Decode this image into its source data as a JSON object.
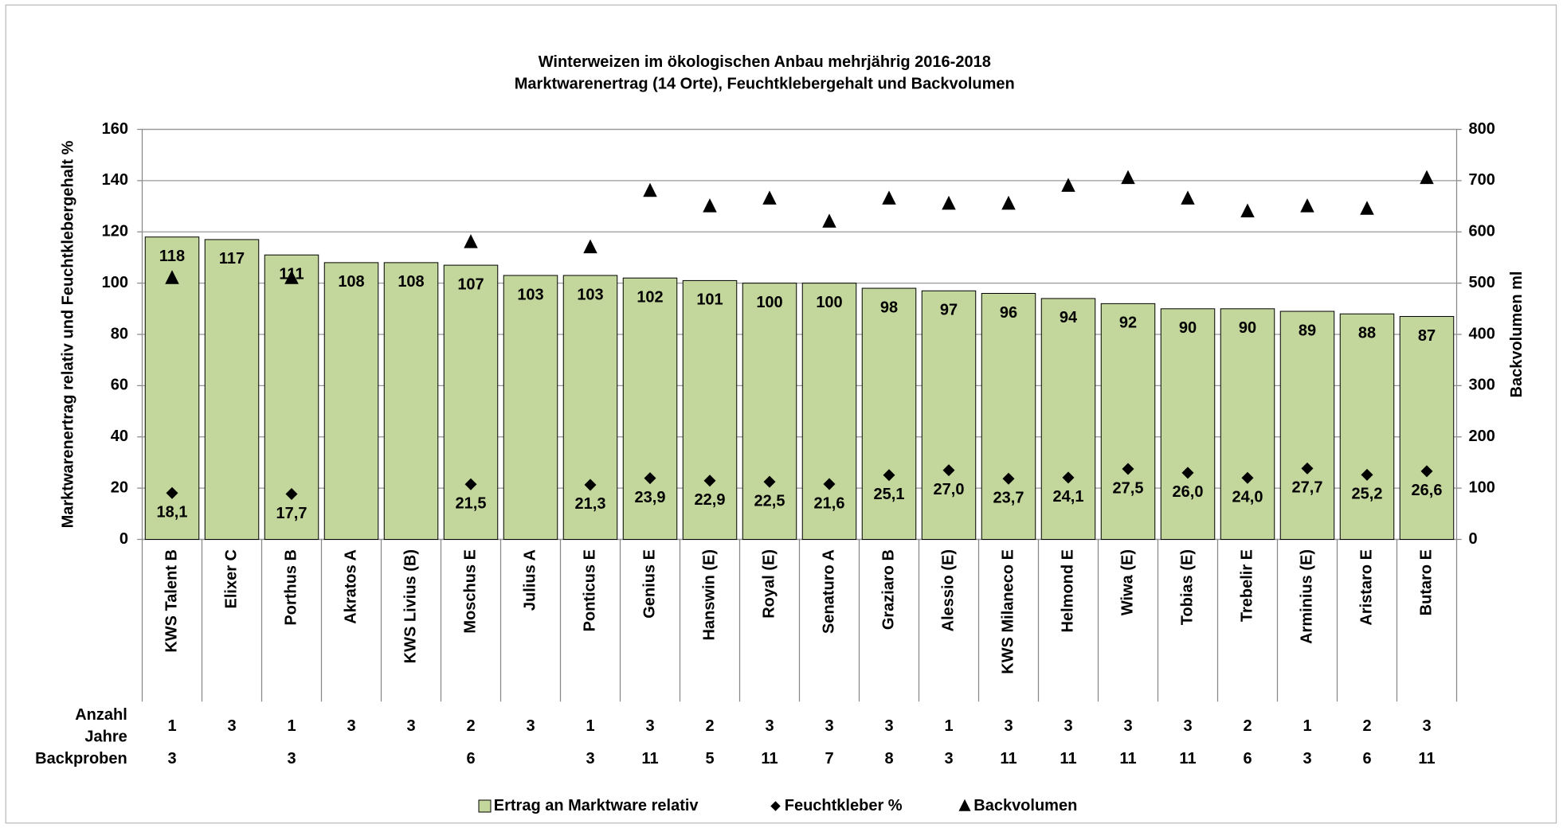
{
  "chart_data": {
    "type": "bar",
    "title": "Winterweizen im ökologischen Anbau mehrjährig 2016-2018",
    "subtitle": "Marktwarenertrag (14 Orte), Feuchtklebergehalt und Backvolumen",
    "y_label": "Marktwarenertrag relativ und Feuchtklebergehalt %",
    "y2_label": "Backvolumen ml",
    "categories": [
      "KWS Talent B",
      "Elixer C",
      "Porthus B",
      "Akratos A",
      "KWS Livius (B)",
      "Moschus E",
      "Julius A",
      "Ponticus E",
      "Genius E",
      "Hanswin (E)",
      "Royal (E)",
      "Senaturo A",
      "Graziaro B",
      "Alessio (E)",
      "KWS Milaneco E",
      "Helmond E",
      "Wiwa (E)",
      "Tobias (E)",
      "Trebelir E",
      "Arminius (E)",
      "Aristaro E",
      "Butaro E"
    ],
    "series": [
      {
        "name": "Ertrag an Marktware relativ",
        "type": "bar",
        "color": "#c3d69b",
        "values": [
          118,
          117,
          111,
          108,
          108,
          107,
          103,
          103,
          102,
          101,
          100,
          100,
          98,
          97,
          96,
          94,
          92,
          90,
          90,
          89,
          88,
          87
        ]
      },
      {
        "name": "Feuchtkleber %",
        "type": "diamond",
        "color": "#000000",
        "values": [
          18.1,
          null,
          17.7,
          null,
          null,
          21.5,
          null,
          21.3,
          23.9,
          22.9,
          22.5,
          21.6,
          25.1,
          27.0,
          23.7,
          24.1,
          27.5,
          26.0,
          24.0,
          27.7,
          25.2,
          26.6
        ],
        "value_labels": [
          "18,1",
          null,
          "17,7",
          null,
          null,
          "21,5",
          null,
          "21,3",
          "23,9",
          "22,9",
          "22,5",
          "21,6",
          "25,1",
          "27,0",
          "23,7",
          "24,1",
          "27,5",
          "26,0",
          "24,0",
          "27,7",
          "25,2",
          "26,6"
        ]
      },
      {
        "name": "Backvolumen",
        "type": "triangle",
        "axis": "y2",
        "color": "#000000",
        "values": [
          510,
          null,
          510,
          null,
          null,
          580,
          null,
          570,
          680,
          650,
          665,
          620,
          665,
          655,
          655,
          690,
          705,
          665,
          640,
          650,
          645,
          705
        ]
      }
    ],
    "ylim": [
      0,
      160
    ],
    "yticks": [
      0,
      20,
      40,
      60,
      80,
      100,
      120,
      140,
      160
    ],
    "y2lim": [
      0,
      800
    ],
    "y2ticks": [
      0,
      100,
      200,
      300,
      400,
      500,
      600,
      700,
      800
    ],
    "grid": true,
    "legend": "bottom",
    "table": {
      "row_labels": [
        "Anzahl",
        "Jahre",
        "Backproben"
      ],
      "jahre": [
        1,
        3,
        1,
        3,
        3,
        2,
        3,
        1,
        3,
        2,
        3,
        3,
        3,
        1,
        3,
        3,
        3,
        3,
        2,
        1,
        2,
        3
      ],
      "backproben": [
        3,
        null,
        3,
        null,
        null,
        6,
        null,
        3,
        11,
        5,
        11,
        7,
        8,
        3,
        11,
        11,
        11,
        11,
        6,
        3,
        6,
        11
      ]
    }
  }
}
